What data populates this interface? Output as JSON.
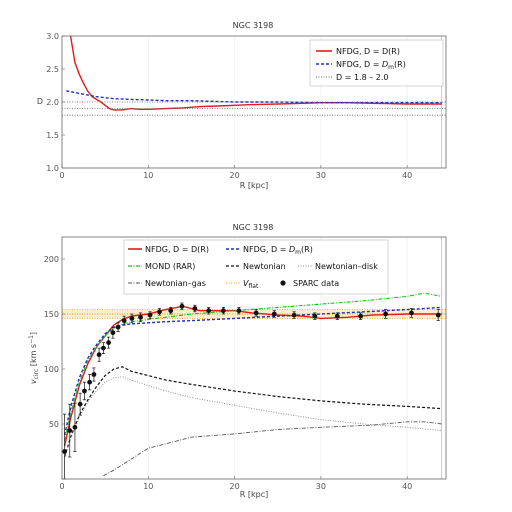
{
  "chart_data": [
    {
      "type": "line",
      "title": "NGC 3198",
      "xlabel": "R [kpc]",
      "ylabel": "D",
      "xlim": [
        0,
        44.5
      ],
      "ylim": [
        1.0,
        3.0
      ],
      "xticks": [
        "0",
        "10",
        "20",
        "30",
        "40"
      ],
      "yticks": [
        "1.0",
        "1.5",
        "2.0",
        "2.5",
        "3.0"
      ],
      "legend_position": "top-right",
      "legend": [
        "NFDG, D = D(R)",
        "NFDG, D = D_m(R)",
        "D = 1.8 – 2.0"
      ],
      "series": [
        {
          "name": "NFDG, D = D(R)",
          "color": "#e31a1c",
          "x": [
            1.0,
            1.5,
            2.0,
            2.5,
            3.0,
            3.5,
            4.0,
            4.5,
            5.0,
            5.5,
            6.0,
            7.0,
            8.0,
            9.0,
            10.0,
            12.0,
            14.0,
            16.0,
            18.0,
            20.0,
            22.0,
            25.0,
            28.0,
            30.0,
            33.0,
            36.0,
            40.0,
            44.0
          ],
          "y": [
            3.0,
            2.6,
            2.42,
            2.28,
            2.16,
            2.08,
            2.04,
            2.0,
            1.95,
            1.9,
            1.88,
            1.88,
            1.9,
            1.89,
            1.89,
            1.9,
            1.91,
            1.93,
            1.94,
            1.95,
            1.96,
            1.97,
            1.98,
            1.99,
            1.99,
            1.98,
            1.97,
            1.97
          ]
        },
        {
          "name": "NFDG, D = D_m(R)",
          "color": "#1f2fbf",
          "x": [
            0.5,
            2.0,
            4.0,
            6.0,
            8.0,
            10.0,
            12.0,
            15.0,
            20.0,
            25.0,
            30.0,
            35.0,
            40.0,
            44.0
          ],
          "y": [
            2.17,
            2.13,
            2.08,
            2.05,
            2.04,
            2.03,
            2.02,
            2.02,
            2.0,
            2.0,
            1.99,
            1.99,
            1.99,
            1.99
          ]
        },
        {
          "name": "D = 1.8",
          "color": "#666666",
          "x": [
            0,
            44.5
          ],
          "y": [
            1.8,
            1.8
          ]
        },
        {
          "name": "D = 1.9",
          "color": "#666666",
          "x": [
            0,
            44.5
          ],
          "y": [
            1.9,
            1.9
          ]
        },
        {
          "name": "D = 2.0",
          "color": "#666666",
          "x": [
            0,
            44.5
          ],
          "y": [
            2.0,
            2.0
          ]
        }
      ]
    },
    {
      "type": "line",
      "title": "NGC 3198",
      "xlabel": "R [kpc]",
      "ylabel": "v_circ [km s^-1]",
      "xlim": [
        0,
        44.5
      ],
      "ylim": [
        0,
        220
      ],
      "xticks": [
        "0",
        "10",
        "20",
        "30",
        "40"
      ],
      "yticks": [
        "50",
        "100",
        "150",
        "200"
      ],
      "legend_position": "top",
      "legend": [
        "NFDG, D = D(R)",
        "NFDG, D = D_m(R)",
        "MOND (RAR)",
        "Newtonian",
        "Newtonian–disk",
        "Newtonian–gas",
        "V_flat",
        "SPARC data"
      ],
      "vflat": 150.0,
      "vflat_band": [
        146.0,
        154.0
      ],
      "series": [
        {
          "name": "NFDG, D = D(R)",
          "color": "#e31a1c",
          "x": [
            0.3,
            1.0,
            2.0,
            3.0,
            4.0,
            5.0,
            6.0,
            7.0,
            8.0,
            10.0,
            12.0,
            14.0,
            16.0,
            18.0,
            20.0,
            22.0,
            25.0,
            28.0,
            30.0,
            33.0,
            36.0,
            40.0,
            44.0
          ],
          "y": [
            30,
            55,
            85,
            105,
            120,
            130,
            140,
            145,
            148,
            150,
            154,
            157,
            153,
            153,
            153,
            151,
            149,
            148,
            146,
            147,
            149,
            150,
            150
          ]
        },
        {
          "name": "NFDG, D = D_m(R)",
          "color": "#1f2fbf",
          "x": [
            0.3,
            1.0,
            2.0,
            3.0,
            4.0,
            5.0,
            6.0,
            7.0,
            8.0,
            10.0,
            12.0,
            15.0,
            20.0,
            25.0,
            30.0,
            35.0,
            40.0,
            44.0
          ],
          "y": [
            40,
            65,
            92,
            110,
            122,
            132,
            138,
            140,
            141,
            142,
            143,
            144,
            146,
            148,
            150,
            152,
            154,
            156
          ]
        },
        {
          "name": "MOND (RAR)",
          "color": "#22bb22",
          "x": [
            0.3,
            1.0,
            2.0,
            3.0,
            4.0,
            5.0,
            6.0,
            7.0,
            8.0,
            10.0,
            12.0,
            15.0,
            20.0,
            25.0,
            30.0,
            35.0,
            40.0,
            42.0,
            44.0
          ],
          "y": [
            35,
            60,
            88,
            108,
            120,
            130,
            137,
            141,
            143,
            145,
            147,
            150,
            153,
            156,
            159,
            162,
            166,
            169,
            166
          ]
        },
        {
          "name": "Newtonian",
          "color": "#111111",
          "x": [
            0.3,
            1.0,
            2.0,
            3.0,
            4.0,
            5.0,
            6.0,
            7.0,
            8.0,
            10.0,
            12.0,
            15.0,
            20.0,
            25.0,
            30.0,
            35.0,
            40.0,
            44.0
          ],
          "y": [
            20,
            38,
            58,
            72,
            84,
            94,
            100,
            102,
            98,
            94,
            90,
            86,
            80,
            75,
            71,
            68,
            66,
            64
          ]
        },
        {
          "name": "Newtonian–disk",
          "color": "#888888",
          "x": [
            0.3,
            1.0,
            2.0,
            3.0,
            4.0,
            5.0,
            6.0,
            7.0,
            8.0,
            10.0,
            12.0,
            15.0,
            20.0,
            25.0,
            30.0,
            35.0,
            40.0,
            44.0
          ],
          "y": [
            20,
            37,
            56,
            70,
            80,
            88,
            92,
            93,
            90,
            85,
            80,
            74,
            67,
            60,
            54,
            50,
            47,
            44
          ]
        },
        {
          "name": "Newtonian–gas",
          "color": "#555555",
          "x": [
            4.8,
            6.0,
            8.0,
            10.0,
            12.0,
            15.0,
            20.0,
            25.0,
            30.0,
            33.0,
            36.0,
            40.0,
            42.0,
            44.0
          ],
          "y": [
            3,
            8,
            18,
            28,
            32,
            38,
            41,
            45,
            47,
            48,
            49,
            52,
            52,
            50
          ]
        }
      ],
      "sparc_data": {
        "x": [
          0.3,
          0.9,
          1.5,
          2.1,
          2.6,
          3.2,
          3.7,
          4.3,
          4.8,
          5.4,
          5.9,
          6.5,
          7.2,
          8.1,
          9.1,
          10.2,
          11.3,
          12.6,
          13.9,
          15.4,
          17.0,
          18.7,
          20.5,
          22.5,
          24.6,
          26.9,
          29.3,
          31.9,
          34.6,
          37.5,
          40.5,
          43.6
        ],
        "v": [
          25,
          44,
          47,
          68,
          80,
          88,
          95,
          113,
          119,
          124,
          133,
          138,
          144,
          146,
          147,
          149,
          152,
          153,
          157,
          155,
          153,
          153,
          153,
          151,
          150,
          149,
          148,
          148,
          148,
          150,
          151,
          149
        ],
        "err": [
          34,
          24,
          22,
          10,
          8,
          7,
          6,
          6,
          5,
          5,
          5,
          4,
          4,
          4,
          4,
          3,
          3,
          3,
          3,
          3,
          3,
          3,
          3,
          3,
          3,
          3,
          3,
          3,
          3,
          4,
          4,
          5
        ]
      }
    }
  ]
}
